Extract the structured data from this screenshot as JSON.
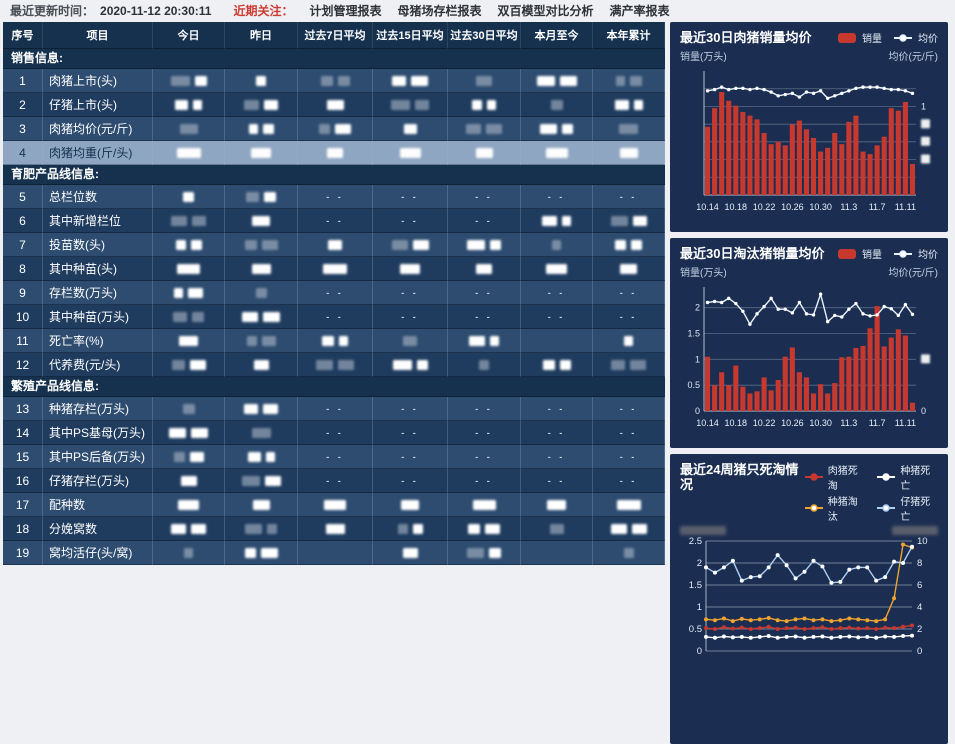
{
  "topbar": {
    "updated_label": "最近更新时间：",
    "updated_time": "2020-11-12 20:30:11",
    "focus_label": "近期关注：",
    "links": [
      "计划管理报表",
      "母猪场存栏报表",
      "双百模型对比分析",
      "满产率报表"
    ]
  },
  "colors": {
    "bar_red": "#c7382e",
    "line_white": "#e9f2fb",
    "yellow": "#f0a32e",
    "pale_blue": "#aed1f1",
    "white": "#ffffff",
    "panel_bg": "#1b2e52",
    "header_bg": "#15314e",
    "row_medium": "#2d4c70",
    "row_dark": "#1f3c5f",
    "highlight_row": "#8ea6c2",
    "focus_red": "#cf3a32"
  },
  "table": {
    "headers": [
      "序号",
      "项目",
      "今日",
      "昨日",
      "过去7日平均",
      "过去15日平均",
      "过去30日平均",
      "本月至今",
      "本年累计"
    ],
    "rows": [
      {
        "type": "section",
        "label": "销售信息:"
      },
      {
        "type": "data",
        "no": "1",
        "label": "肉猪上市(头)",
        "cells": [
          "b",
          "b",
          "b",
          "b",
          "b",
          "b",
          "b"
        ]
      },
      {
        "type": "data",
        "no": "2",
        "label": "仔猪上市(头)",
        "cells": [
          "b",
          "b",
          "b",
          "b",
          "b",
          "b",
          "b"
        ]
      },
      {
        "type": "data",
        "no": "3",
        "label": "肉猪均价(元/斤)",
        "cells": [
          "b",
          "b",
          "b",
          "b",
          "b",
          "b",
          "b"
        ]
      },
      {
        "type": "data",
        "no": "4",
        "label": "肉猪均重(斤/头)",
        "highlight": true,
        "cells": [
          "b",
          "b",
          "b",
          "b",
          "b",
          "b",
          "b"
        ]
      },
      {
        "type": "section",
        "label": "育肥产品线信息:"
      },
      {
        "type": "data",
        "no": "5",
        "label": "总栏位数",
        "cells": [
          "b",
          "b",
          "--",
          "--",
          "--",
          "--",
          "--"
        ]
      },
      {
        "type": "data",
        "no": "6",
        "label": "其中新增栏位",
        "cells": [
          "b",
          "b",
          "--",
          "--",
          "--",
          "b",
          "b"
        ]
      },
      {
        "type": "data",
        "no": "7",
        "label": "投苗数(头)",
        "cells": [
          "b",
          "b",
          "b",
          "b",
          "b",
          "b",
          "b"
        ]
      },
      {
        "type": "data",
        "no": "8",
        "label": "其中种苗(头)",
        "cells": [
          "b",
          "b",
          "b",
          "b",
          "b",
          "b",
          "b"
        ]
      },
      {
        "type": "data",
        "no": "9",
        "label": "存栏数(万头)",
        "cells": [
          "b",
          "b",
          "--",
          "--",
          "--",
          "--",
          "--"
        ]
      },
      {
        "type": "data",
        "no": "10",
        "label": "其中种苗(万头)",
        "cells": [
          "b",
          "b",
          "--",
          "--",
          "--",
          "--",
          "--"
        ]
      },
      {
        "type": "data",
        "no": "11",
        "label": "死亡率(%)",
        "cells": [
          "b",
          "b",
          "b",
          "b",
          "b",
          "",
          "b"
        ]
      },
      {
        "type": "data",
        "no": "12",
        "label": "代养费(元/头)",
        "cells": [
          "b",
          "b",
          "b",
          "b",
          "b",
          "b",
          "b"
        ]
      },
      {
        "type": "section",
        "label": "繁殖产品线信息:"
      },
      {
        "type": "data",
        "no": "13",
        "label": "种猪存栏(万头)",
        "cells": [
          "b",
          "b",
          "--",
          "--",
          "--",
          "--",
          "--"
        ]
      },
      {
        "type": "data",
        "no": "14",
        "label": "其中PS基母(万头)",
        "cells": [
          "b",
          "b",
          "--",
          "--",
          "--",
          "--",
          "--"
        ]
      },
      {
        "type": "data",
        "no": "15",
        "label": "其中PS后备(万头)",
        "cells": [
          "b",
          "b",
          "--",
          "--",
          "--",
          "--",
          "--"
        ]
      },
      {
        "type": "data",
        "no": "16",
        "label": "仔猪存栏(万头)",
        "cells": [
          "b",
          "b",
          "--",
          "--",
          "--",
          "--",
          "--"
        ]
      },
      {
        "type": "data",
        "no": "17",
        "label": "配种数",
        "cells": [
          "b",
          "b",
          "b",
          "b",
          "b",
          "b",
          "b"
        ]
      },
      {
        "type": "data",
        "no": "18",
        "label": "分娩窝数",
        "cells": [
          "b",
          "b",
          "b",
          "b",
          "b",
          "b",
          "b"
        ]
      },
      {
        "type": "data",
        "no": "19",
        "label": "窝均活仔(头/窝)",
        "cells": [
          "b",
          "b",
          "",
          "b",
          "b",
          "",
          "b"
        ]
      }
    ]
  },
  "chart_data": [
    {
      "type": "bar",
      "title": "最近30日肉猪销量均价",
      "ylabel_left": "销量(万头)",
      "ylabel_right": "均价(元/斤)",
      "legend": [
        {
          "label": "销量",
          "kind": "bar",
          "color": "#c7382e"
        },
        {
          "label": "均价",
          "kind": "line",
          "color": "#e9f2fb"
        }
      ],
      "x": [
        "10.14",
        "10.15",
        "10.16",
        "10.17",
        "10.18",
        "10.19",
        "10.20",
        "10.21",
        "10.22",
        "10.23",
        "10.24",
        "10.25",
        "10.26",
        "10.27",
        "10.28",
        "10.29",
        "10.30",
        "10.31",
        "11.1",
        "11.2",
        "11.3",
        "11.4",
        "11.5",
        "11.6",
        "11.7",
        "11.8",
        "11.9",
        "11.10",
        "11.11",
        "11.12"
      ],
      "x_ticks": [
        {
          "i": 0,
          "l": "10.14"
        },
        {
          "i": 4,
          "l": "10.18"
        },
        {
          "i": 8,
          "l": "10.22"
        },
        {
          "i": 12,
          "l": "10.26"
        },
        {
          "i": 16,
          "l": "10.30"
        },
        {
          "i": 20,
          "l": "11.3"
        },
        {
          "i": 24,
          "l": "11.7"
        },
        {
          "i": 28,
          "l": "11.11"
        }
      ],
      "ylim_left": [
        0,
        1
      ],
      "grid": [
        0.143,
        0.286,
        0.429,
        0.571,
        0.714,
        0.857
      ],
      "left_ticks": [],
      "right_ticks": [
        {
          "v": 0.714,
          "label": "1"
        },
        {
          "v": 0.571,
          "redacted": true
        },
        {
          "v": 0.429,
          "redacted": true
        },
        {
          "v": 0.286,
          "redacted": true
        }
      ],
      "series": [
        {
          "name": "销量",
          "kind": "bar",
          "axis": "left",
          "color": "#c7382e",
          "values": [
            0.55,
            0.7,
            0.83,
            0.76,
            0.72,
            0.67,
            0.64,
            0.61,
            0.5,
            0.41,
            0.43,
            0.4,
            0.57,
            0.6,
            0.53,
            0.46,
            0.35,
            0.38,
            0.5,
            0.41,
            0.59,
            0.64,
            0.35,
            0.33,
            0.4,
            0.47,
            0.7,
            0.68,
            0.75,
            0.25
          ]
        },
        {
          "name": "均价",
          "kind": "line",
          "axis": "right",
          "color": "#e9f2fb",
          "values": [
            0.84,
            0.85,
            0.87,
            0.85,
            0.86,
            0.86,
            0.85,
            0.86,
            0.85,
            0.83,
            0.8,
            0.81,
            0.82,
            0.79,
            0.83,
            0.82,
            0.84,
            0.78,
            0.8,
            0.82,
            0.84,
            0.86,
            0.87,
            0.87,
            0.87,
            0.86,
            0.85,
            0.85,
            0.84,
            0.82
          ]
        }
      ]
    },
    {
      "type": "bar",
      "title": "最近30日淘汰猪销量均价",
      "ylabel_left": "销量(万头)",
      "ylabel_right": "均价(元/斤)",
      "legend": [
        {
          "label": "销量",
          "kind": "bar",
          "color": "#c7382e"
        },
        {
          "label": "均价",
          "kind": "line",
          "color": "#e9f2fb"
        }
      ],
      "x": [
        "10.14",
        "10.15",
        "10.16",
        "10.17",
        "10.18",
        "10.19",
        "10.20",
        "10.21",
        "10.22",
        "10.23",
        "10.24",
        "10.25",
        "10.26",
        "10.27",
        "10.28",
        "10.29",
        "10.30",
        "10.31",
        "11.1",
        "11.2",
        "11.3",
        "11.4",
        "11.5",
        "11.6",
        "11.7",
        "11.8",
        "11.9",
        "11.10",
        "11.11",
        "11.12"
      ],
      "x_ticks": [
        {
          "i": 0,
          "l": "10.14"
        },
        {
          "i": 4,
          "l": "10.18"
        },
        {
          "i": 8,
          "l": "10.22"
        },
        {
          "i": 12,
          "l": "10.26"
        },
        {
          "i": 16,
          "l": "10.30"
        },
        {
          "i": 20,
          "l": "11.3"
        },
        {
          "i": 24,
          "l": "11.7"
        },
        {
          "i": 28,
          "l": "11.11"
        }
      ],
      "ylim_left": [
        0,
        2.4
      ],
      "grid": [
        0.5,
        1.0,
        1.5,
        2.0
      ],
      "left_ticks": [
        {
          "v": 2,
          "label": "2"
        },
        {
          "v": 1.5,
          "label": "1.5"
        },
        {
          "v": 1,
          "label": "1"
        },
        {
          "v": 0.5,
          "label": "0.5"
        },
        {
          "v": 0,
          "label": "0"
        }
      ],
      "right_ticks": [
        {
          "v": 1.0,
          "redacted": true
        },
        {
          "v": 0,
          "label": "0"
        }
      ],
      "series": [
        {
          "name": "销量",
          "kind": "bar",
          "axis": "left",
          "color": "#c7382e",
          "values": [
            1.05,
            0.5,
            0.75,
            0.5,
            0.88,
            0.47,
            0.34,
            0.38,
            0.65,
            0.4,
            0.6,
            1.05,
            1.23,
            0.75,
            0.65,
            0.34,
            0.52,
            0.34,
            0.54,
            1.04,
            1.05,
            1.22,
            1.26,
            1.6,
            2.03,
            1.25,
            1.42,
            1.58,
            1.46,
            0.16
          ]
        },
        {
          "name": "均价",
          "kind": "line",
          "axis": "right",
          "color": "#e9f2fb",
          "values": [
            2.1,
            2.12,
            2.1,
            2.18,
            2.08,
            1.93,
            1.68,
            1.88,
            2.02,
            2.18,
            1.97,
            1.97,
            1.9,
            2.1,
            1.88,
            1.86,
            2.26,
            1.73,
            1.85,
            1.82,
            1.97,
            2.08,
            1.88,
            1.84,
            1.86,
            2.02,
            1.98,
            1.85,
            2.06,
            1.87
          ]
        }
      ]
    },
    {
      "type": "line",
      "title": "最近24周猪只死淘情况",
      "ylabel_left_redacted": true,
      "ylabel_right_redacted": true,
      "legend": [
        {
          "label": "肉猪死淘",
          "kind": "line",
          "color": "#c7382e"
        },
        {
          "label": "种猪死亡",
          "kind": "line",
          "color": "#ffffff"
        },
        {
          "label": "种猪淘汰",
          "kind": "line",
          "color": "#f0a32e"
        },
        {
          "label": "仔猪死亡",
          "kind": "line",
          "color": "#aed1f1"
        }
      ],
      "x": [
        1,
        2,
        3,
        4,
        5,
        6,
        7,
        8,
        9,
        10,
        11,
        12,
        13,
        14,
        15,
        16,
        17,
        18,
        19,
        20,
        21,
        22,
        23,
        24
      ],
      "ylim_left": [
        0,
        2.5
      ],
      "ylim_right": [
        0,
        10
      ],
      "left_ticks": [
        {
          "v": 2.5,
          "label": "2.5"
        },
        {
          "v": 2,
          "label": "2"
        },
        {
          "v": 1.5,
          "label": "1.5"
        },
        {
          "v": 1,
          "label": "1"
        },
        {
          "v": 0.5,
          "label": "0.5"
        },
        {
          "v": 0,
          "label": "0"
        }
      ],
      "right_ticks": [
        {
          "v": 2.5,
          "label": "10"
        },
        {
          "v": 2,
          "label": "8"
        },
        {
          "v": 1.5,
          "label": "6"
        },
        {
          "v": 1,
          "label": "4"
        },
        {
          "v": 0.5,
          "label": "2"
        },
        {
          "v": 0,
          "label": "0"
        }
      ],
      "series": [
        {
          "name": "肉猪死淘",
          "kind": "line",
          "color": "#c7382e",
          "values": [
            0.52,
            0.5,
            0.54,
            0.51,
            0.53,
            0.5,
            0.52,
            0.55,
            0.5,
            0.52,
            0.53,
            0.5,
            0.52,
            0.54,
            0.5,
            0.52,
            0.53,
            0.51,
            0.52,
            0.5,
            0.53,
            0.52,
            0.55,
            0.58
          ]
        },
        {
          "name": "种猪死亡",
          "kind": "line",
          "color": "#ffffff",
          "values": [
            0.32,
            0.3,
            0.33,
            0.31,
            0.32,
            0.3,
            0.32,
            0.34,
            0.3,
            0.32,
            0.33,
            0.3,
            0.32,
            0.33,
            0.3,
            0.32,
            0.33,
            0.31,
            0.32,
            0.3,
            0.33,
            0.32,
            0.34,
            0.35
          ]
        },
        {
          "name": "种猪淘汰",
          "kind": "line",
          "color": "#f0a32e",
          "values": [
            0.72,
            0.7,
            0.74,
            0.68,
            0.73,
            0.7,
            0.72,
            0.75,
            0.7,
            0.68,
            0.72,
            0.74,
            0.7,
            0.72,
            0.68,
            0.7,
            0.74,
            0.72,
            0.7,
            0.68,
            0.72,
            1.2,
            2.42,
            2.35
          ]
        },
        {
          "name": "仔猪死亡",
          "kind": "line",
          "color": "#aed1f1",
          "values": [
            1.9,
            1.78,
            1.9,
            2.05,
            1.6,
            1.68,
            1.7,
            1.9,
            2.18,
            1.95,
            1.65,
            1.8,
            2.05,
            1.92,
            1.55,
            1.57,
            1.85,
            1.9,
            1.9,
            1.6,
            1.68,
            2.03,
            2.0,
            2.37
          ]
        }
      ]
    }
  ]
}
